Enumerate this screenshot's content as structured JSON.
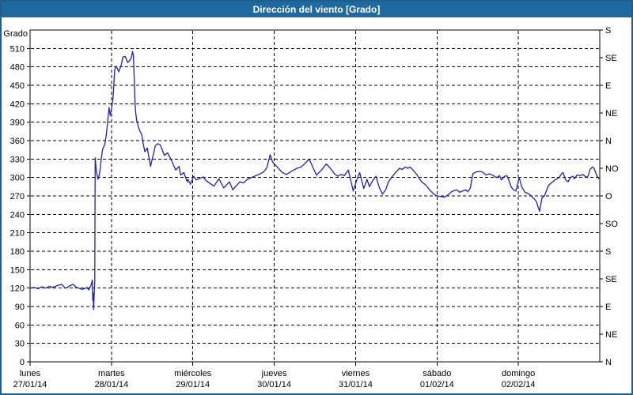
{
  "window": {
    "title": "Dirección del viento [Grado]"
  },
  "colors": {
    "titlebar_bg": "#1e6a9e",
    "titlebar_text": "#ffffff",
    "frame_border": "#1f5d8b",
    "plot_bg": "#ffffff",
    "grid": "#000000",
    "line": "#2121b3"
  },
  "chart_data": {
    "type": "line",
    "title": "Dirección del viento [Grado]",
    "ylabel": "Grado",
    "ylim": [
      0,
      540
    ],
    "y_tick_step_left": 30,
    "y_tick_step_right": 45,
    "grid": "dashed horizontal every 30°, dashed vertical at each day",
    "legend_position": "none",
    "y_left_labels": [
      "0",
      "30",
      "60",
      "90",
      "120",
      "150",
      "180",
      "210",
      "240",
      "270",
      "300",
      "330",
      "360",
      "390",
      "420",
      "450",
      "480",
      "510"
    ],
    "y_right_labels_top_to_bottom": [
      "S",
      "SE",
      "E",
      "NE",
      "N",
      "NO",
      "O",
      "SO",
      "S",
      "SE",
      "E",
      "NE",
      "N"
    ],
    "x_days": [
      {
        "weekday": "lunes",
        "date": "27/01/14"
      },
      {
        "weekday": "martes",
        "date": "28/01/14"
      },
      {
        "weekday": "miércoles",
        "date": "29/01/14"
      },
      {
        "weekday": "jueves",
        "date": "30/01/14"
      },
      {
        "weekday": "viernes",
        "date": "31/01/14"
      },
      {
        "weekday": "sábado",
        "date": "01/02/14"
      },
      {
        "weekday": "domingo",
        "date": "02/02/14"
      }
    ],
    "series": [
      {
        "name": "Dirección del viento",
        "color": "#2121b3",
        "x_unit": "days since lunes 27/01/14 00:00",
        "y_unit": "Grado",
        "points": [
          [
            0.0,
            120
          ],
          [
            0.05,
            121
          ],
          [
            0.1,
            119
          ],
          [
            0.14,
            122
          ],
          [
            0.19,
            120
          ],
          [
            0.24,
            123
          ],
          [
            0.28,
            121
          ],
          [
            0.33,
            124
          ],
          [
            0.39,
            126
          ],
          [
            0.43,
            120
          ],
          [
            0.46,
            121
          ],
          [
            0.49,
            124
          ],
          [
            0.53,
            126
          ],
          [
            0.57,
            121
          ],
          [
            0.6,
            120
          ],
          [
            0.63,
            118
          ],
          [
            0.67,
            119
          ],
          [
            0.7,
            121
          ],
          [
            0.72,
            117
          ],
          [
            0.75,
            125
          ],
          [
            0.765,
            133
          ],
          [
            0.77,
            100
          ],
          [
            0.775,
            112
          ],
          [
            0.78,
            85
          ],
          [
            0.795,
            130
          ],
          [
            0.8,
            332
          ],
          [
            0.815,
            310
          ],
          [
            0.835,
            297
          ],
          [
            0.855,
            307
          ],
          [
            0.875,
            330
          ],
          [
            0.89,
            345
          ],
          [
            0.92,
            355
          ],
          [
            0.94,
            373
          ],
          [
            0.96,
            400
          ],
          [
            0.97,
            414
          ],
          [
            0.985,
            401
          ],
          [
            1.0,
            411
          ],
          [
            1.02,
            430
          ],
          [
            1.04,
            476
          ],
          [
            1.06,
            481
          ],
          [
            1.09,
            472
          ],
          [
            1.12,
            483
          ],
          [
            1.14,
            496
          ],
          [
            1.17,
            497
          ],
          [
            1.2,
            487
          ],
          [
            1.22,
            490
          ],
          [
            1.24,
            493
          ],
          [
            1.25,
            499
          ],
          [
            1.26,
            505
          ],
          [
            1.27,
            498
          ],
          [
            1.28,
            460
          ],
          [
            1.29,
            420
          ],
          [
            1.3,
            403
          ],
          [
            1.31,
            393
          ],
          [
            1.33,
            383
          ],
          [
            1.35,
            375
          ],
          [
            1.37,
            371
          ],
          [
            1.39,
            355
          ],
          [
            1.41,
            342
          ],
          [
            1.44,
            348
          ],
          [
            1.48,
            318
          ],
          [
            1.54,
            352
          ],
          [
            1.57,
            355
          ],
          [
            1.6,
            353
          ],
          [
            1.65,
            336
          ],
          [
            1.69,
            340
          ],
          [
            1.73,
            330
          ],
          [
            1.79,
            312
          ],
          [
            1.83,
            318
          ],
          [
            1.85,
            304
          ],
          [
            1.89,
            308
          ],
          [
            1.93,
            293
          ],
          [
            1.94,
            297
          ],
          [
            1.97,
            289
          ],
          [
            2.01,
            302
          ],
          [
            2.04,
            296
          ],
          [
            2.13,
            301
          ],
          [
            2.16,
            295
          ],
          [
            2.26,
            286
          ],
          [
            2.32,
            298
          ],
          [
            2.38,
            283
          ],
          [
            2.45,
            293
          ],
          [
            2.49,
            280
          ],
          [
            2.53,
            286
          ],
          [
            2.58,
            293
          ],
          [
            2.62,
            291
          ],
          [
            2.67,
            297
          ],
          [
            2.74,
            301
          ],
          [
            2.81,
            305
          ],
          [
            2.87,
            309
          ],
          [
            2.91,
            316
          ],
          [
            2.95,
            337
          ],
          [
            2.98,
            325
          ],
          [
            3.03,
            318
          ],
          [
            3.1,
            308
          ],
          [
            3.15,
            305
          ],
          [
            3.21,
            310
          ],
          [
            3.28,
            315
          ],
          [
            3.33,
            317
          ],
          [
            3.37,
            322
          ],
          [
            3.43,
            330
          ],
          [
            3.48,
            315
          ],
          [
            3.52,
            304
          ],
          [
            3.58,
            312
          ],
          [
            3.64,
            322
          ],
          [
            3.69,
            315
          ],
          [
            3.74,
            306
          ],
          [
            3.78,
            302
          ],
          [
            3.82,
            305
          ],
          [
            3.86,
            303
          ],
          [
            3.91,
            312
          ],
          [
            3.95,
            290
          ],
          [
            3.97,
            278
          ],
          [
            4.02,
            298
          ],
          [
            4.05,
            308
          ],
          [
            4.1,
            282
          ],
          [
            4.14,
            297
          ],
          [
            4.17,
            285
          ],
          [
            4.21,
            295
          ],
          [
            4.25,
            302
          ],
          [
            4.29,
            284
          ],
          [
            4.33,
            273
          ],
          [
            4.37,
            280
          ],
          [
            4.4,
            292
          ],
          [
            4.44,
            300
          ],
          [
            4.49,
            308
          ],
          [
            4.54,
            315
          ],
          [
            4.57,
            313
          ],
          [
            4.61,
            317
          ],
          [
            4.64,
            315
          ],
          [
            4.67,
            317
          ],
          [
            4.72,
            310
          ],
          [
            4.75,
            305
          ],
          [
            4.81,
            293
          ],
          [
            4.86,
            288
          ],
          [
            4.91,
            280
          ],
          [
            4.96,
            273
          ],
          [
            5.0,
            270
          ],
          [
            5.05,
            269
          ],
          [
            5.09,
            268
          ],
          [
            5.14,
            272
          ],
          [
            5.18,
            277
          ],
          [
            5.24,
            280
          ],
          [
            5.28,
            276
          ],
          [
            5.35,
            280
          ],
          [
            5.38,
            277
          ],
          [
            5.41,
            283
          ],
          [
            5.44,
            306
          ],
          [
            5.48,
            309
          ],
          [
            5.53,
            310
          ],
          [
            5.57,
            308
          ],
          [
            5.6,
            304
          ],
          [
            5.64,
            306
          ],
          [
            5.68,
            304
          ],
          [
            5.73,
            300
          ],
          [
            5.77,
            303
          ],
          [
            5.79,
            296
          ],
          [
            5.83,
            302
          ],
          [
            5.86,
            303
          ],
          [
            5.89,
            293
          ],
          [
            5.91,
            285
          ],
          [
            5.94,
            280
          ],
          [
            5.97,
            278
          ],
          [
            6.01,
            300
          ],
          [
            6.04,
            285
          ],
          [
            6.08,
            276
          ],
          [
            6.12,
            274
          ],
          [
            6.14,
            272
          ],
          [
            6.19,
            266
          ],
          [
            6.22,
            261
          ],
          [
            6.26,
            245
          ],
          [
            6.29,
            267
          ],
          [
            6.32,
            270
          ],
          [
            6.37,
            287
          ],
          [
            6.42,
            293
          ],
          [
            6.45,
            296
          ],
          [
            6.5,
            300
          ],
          [
            6.53,
            306
          ],
          [
            6.55,
            308
          ],
          [
            6.58,
            296
          ],
          [
            6.61,
            293
          ],
          [
            6.64,
            300
          ],
          [
            6.67,
            302
          ],
          [
            6.69,
            298
          ],
          [
            6.72,
            304
          ],
          [
            6.76,
            303
          ],
          [
            6.79,
            305
          ],
          [
            6.82,
            302
          ],
          [
            6.85,
            300
          ],
          [
            6.88,
            313
          ],
          [
            6.91,
            317
          ],
          [
            6.93,
            315
          ],
          [
            6.96,
            304
          ],
          [
            6.99,
            298
          ]
        ]
      }
    ]
  }
}
